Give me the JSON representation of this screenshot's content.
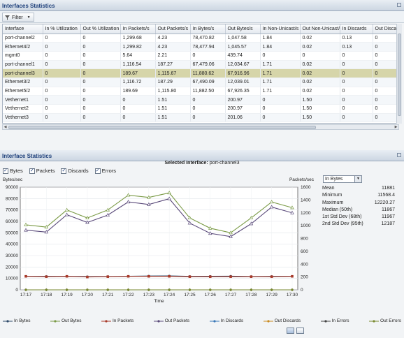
{
  "top_panel": {
    "title": "Interfaces Statistics",
    "filter_label": "Filter"
  },
  "table": {
    "columns": [
      "Interface",
      "In % Utilization",
      "Out % Utilization",
      "In Packets/s",
      "Out Packets/s",
      "In Bytes/s",
      "Out Bytes/s",
      "In Non-Unicast/s",
      "Out Non-Unicast/s",
      "In Discards",
      "Out Discards"
    ],
    "rows": [
      [
        "port-channel2",
        "0",
        "0",
        "1,299.68",
        "4.23",
        "78,470.82",
        "1,047.58",
        "1.84",
        "0.02",
        "0.13",
        "0"
      ],
      [
        "Ethernet4/2",
        "0",
        "0",
        "1,299.82",
        "4.23",
        "78,477.94",
        "1,045.57",
        "1.84",
        "0.02",
        "0.13",
        "0"
      ],
      [
        "mgmt0",
        "0",
        "0",
        "5.64",
        "2.21",
        "0",
        "439.74",
        "0",
        "0",
        "0",
        "0"
      ],
      [
        "port-channel1",
        "0",
        "0",
        "1,116.54",
        "187.27",
        "67,479.06",
        "12,034.67",
        "1.71",
        "0.02",
        "0",
        "0"
      ],
      [
        "port-channel3",
        "0",
        "0",
        "189.67",
        "1,115.67",
        "11,880.62",
        "67,916.96",
        "1.71",
        "0.02",
        "0",
        "0"
      ],
      [
        "Ethernet3/2",
        "0",
        "0",
        "1,116.72",
        "187.29",
        "67,490.09",
        "12,039.01",
        "1.71",
        "0.02",
        "0",
        "0"
      ],
      [
        "Ethernet5/2",
        "0",
        "0",
        "189.69",
        "1,115.80",
        "11,882.50",
        "67,926.35",
        "1.71",
        "0.02",
        "0",
        "0"
      ],
      [
        "Vethernet1",
        "0",
        "0",
        "0",
        "1.51",
        "0",
        "200.97",
        "0",
        "1.50",
        "0",
        "0"
      ],
      [
        "Vethernet2",
        "0",
        "0",
        "0",
        "1.51",
        "0",
        "200.97",
        "0",
        "1.50",
        "0",
        "0"
      ],
      [
        "Vethernet3",
        "0",
        "0",
        "0",
        "1.51",
        "0",
        "201.06",
        "0",
        "1.50",
        "0",
        "0"
      ]
    ],
    "selected_row": 4
  },
  "bottom_panel": {
    "title": "Interface Statistics",
    "selected_label": "Selected Interface:",
    "selected_value": "port-channel3",
    "checkboxes": [
      {
        "label": "Bytes",
        "checked": true
      },
      {
        "label": "Packets",
        "checked": true
      },
      {
        "label": "Discards",
        "checked": true
      },
      {
        "label": "Errors",
        "checked": true
      }
    ],
    "units": "In Bytes",
    "stats": [
      {
        "label": "Mean",
        "value": "11881"
      },
      {
        "label": "Minimum",
        "value": "11568.4"
      },
      {
        "label": "Maximum",
        "value": "12220.27"
      },
      {
        "label": "Median (50th)",
        "value": "11867"
      },
      {
        "label": "1st Std Dev (68th)",
        "value": "11967"
      },
      {
        "label": "2nd Std Dev (95th)",
        "value": "12187"
      }
    ]
  },
  "chart_data": {
    "type": "line",
    "ylabel_left": "Bytes/sec",
    "ylabel_right": "Packets/sec",
    "xlabel": "Time",
    "x": [
      "17:17",
      "17:18",
      "17:19",
      "17:20",
      "17:21",
      "17:22",
      "17:23",
      "17:24",
      "17:25",
      "17:26",
      "17:27",
      "17:28",
      "17:29",
      "17:30"
    ],
    "ylim_left": [
      0,
      90000
    ],
    "yticks_left": [
      0,
      10000,
      20000,
      30000,
      40000,
      50000,
      60000,
      70000,
      80000,
      90000
    ],
    "yticks_left_labels": [
      "0",
      "10000",
      "20000",
      "30000",
      "40000",
      "50000",
      "60000",
      "70000",
      "80000",
      "90000"
    ],
    "ylim_right": [
      0,
      1600
    ],
    "yticks_right": [
      0,
      200,
      400,
      600,
      800,
      1000,
      1200,
      1400,
      1600
    ],
    "series": [
      {
        "name": "In Bytes",
        "axis": "left",
        "color": "#2f4a6a",
        "marker": "dot",
        "values": [
          11900,
          11800,
          11900,
          11600,
          11700,
          11900,
          12100,
          12200,
          11800,
          11900,
          12000,
          11700,
          11800,
          11900
        ]
      },
      {
        "name": "Out Bytes",
        "axis": "left",
        "color": "#7a9a45",
        "marker": "tri",
        "values": [
          57000,
          55000,
          70000,
          63000,
          70000,
          83000,
          81000,
          85000,
          63000,
          54000,
          50000,
          63000,
          77000,
          72000
        ]
      },
      {
        "name": "In Packets",
        "axis": "right",
        "color": "#a83a2a",
        "marker": "sq",
        "values": [
          210,
          205,
          210,
          200,
          205,
          210,
          210,
          210,
          205,
          205,
          205,
          205,
          205,
          210
        ]
      },
      {
        "name": "Out Packets",
        "axis": "right",
        "color": "#5a4a7a",
        "marker": "tri",
        "values": [
          930,
          900,
          1170,
          1050,
          1165,
          1370,
          1330,
          1420,
          1040,
          880,
          830,
          1030,
          1290,
          1200
        ]
      },
      {
        "name": "In Discards",
        "axis": "right",
        "color": "#3a78b8",
        "marker": "dot",
        "values": [
          0,
          0,
          0,
          0,
          0,
          0,
          0,
          0,
          0,
          0,
          0,
          0,
          0,
          0
        ]
      },
      {
        "name": "Out Discards",
        "axis": "right",
        "color": "#c98a20",
        "marker": "dot",
        "values": [
          0,
          0,
          0,
          0,
          0,
          0,
          0,
          0,
          0,
          0,
          0,
          0,
          0,
          0
        ]
      },
      {
        "name": "In Errors",
        "axis": "right",
        "color": "#444444",
        "marker": "plus",
        "values": [
          0,
          0,
          0,
          0,
          0,
          0,
          0,
          0,
          0,
          0,
          0,
          0,
          0,
          0
        ]
      },
      {
        "name": "Out Errors",
        "axis": "right",
        "color": "#7a8a30",
        "marker": "dot",
        "values": [
          0,
          0,
          0,
          0,
          0,
          0,
          0,
          0,
          0,
          0,
          0,
          0,
          0,
          0
        ]
      }
    ],
    "grid": true,
    "legend": "bottom"
  }
}
